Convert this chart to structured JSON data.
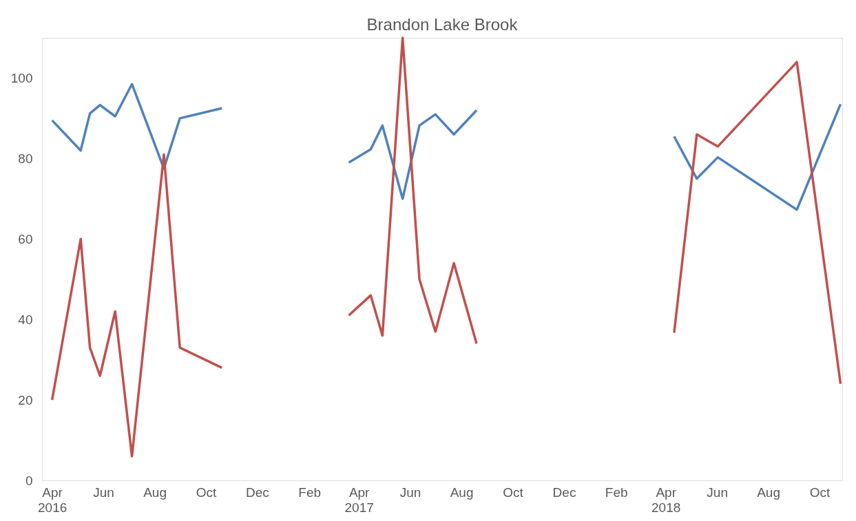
{
  "chart_data": {
    "type": "line",
    "title": "Brandon Lake Brook",
    "x": [
      "2016-04-01",
      "2016-05-05",
      "2016-05-16",
      "2016-05-28",
      "2016-06-15",
      "2016-07-05",
      "2016-08-12",
      "2016-08-31",
      "2016-10-20",
      "2017-01-01",
      "2017-03-20",
      "2017-04-15",
      "2017-04-29",
      "2017-05-23",
      "2017-06-12",
      "2017-07-01",
      "2017-07-23",
      "2017-08-19",
      "2017-12-01",
      "2018-04-11",
      "2018-05-08",
      "2018-06-02",
      "2018-09-04",
      "2018-10-26"
    ],
    "series": [
      {
        "color": "#4f81bd",
        "values": [
          89.5,
          82,
          91.2,
          93.3,
          90.5,
          98.5,
          77.5,
          90,
          92.5,
          null,
          79,
          82.3,
          88.2,
          70,
          88.2,
          91,
          86,
          92,
          null,
          85.5,
          75,
          80.3,
          67.3,
          93.5
        ]
      },
      {
        "color": "#c0504d",
        "values": [
          20,
          60,
          33,
          26,
          42,
          6,
          81,
          33,
          28,
          null,
          41,
          46,
          36,
          110,
          50,
          37,
          54,
          34,
          null,
          36.7,
          86,
          83,
          104,
          24
        ]
      }
    ],
    "xlim": [
      "2016-03-20",
      "2018-10-28"
    ],
    "xticks": [
      {
        "value": "2016-04-01",
        "label": "Apr 2016"
      },
      {
        "value": "2016-06-01",
        "label": "Jun"
      },
      {
        "value": "2016-08-01",
        "label": "Aug"
      },
      {
        "value": "2016-10-01",
        "label": "Oct"
      },
      {
        "value": "2016-12-01",
        "label": "Dec"
      },
      {
        "value": "2017-02-01",
        "label": "Feb"
      },
      {
        "value": "2017-04-01",
        "label": "Apr 2017"
      },
      {
        "value": "2017-06-01",
        "label": "Jun"
      },
      {
        "value": "2017-08-01",
        "label": "Aug"
      },
      {
        "value": "2017-10-01",
        "label": "Oct"
      },
      {
        "value": "2017-12-01",
        "label": "Dec"
      },
      {
        "value": "2018-02-01",
        "label": "Feb"
      },
      {
        "value": "2018-04-01",
        "label": "Apr 2018"
      },
      {
        "value": "2018-06-01",
        "label": "Jun"
      },
      {
        "value": "2018-08-01",
        "label": "Aug"
      },
      {
        "value": "2018-10-01",
        "label": "Oct"
      }
    ],
    "ylim": [
      0,
      110
    ],
    "yticks": [
      0,
      20,
      40,
      60,
      80,
      100
    ],
    "grid": false,
    "legend": false,
    "line_style": "solid",
    "marker": "none"
  }
}
